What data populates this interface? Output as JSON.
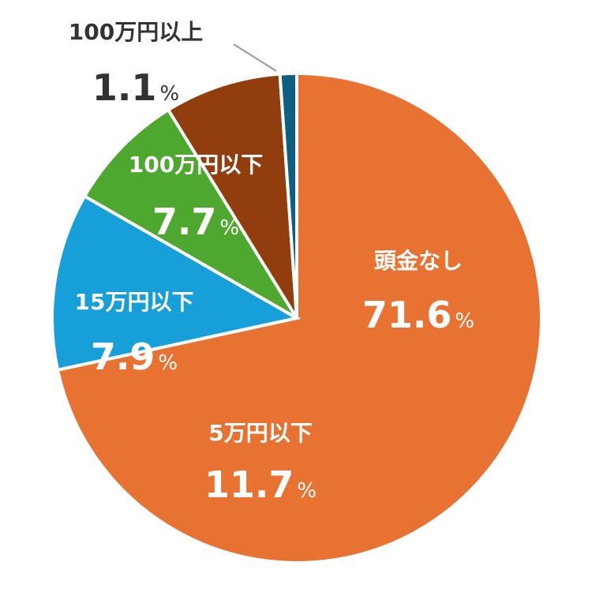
{
  "chart_data": {
    "type": "pie",
    "start_angle_deg": 0,
    "direction": "clockwise",
    "slices": [
      {
        "label": "頭金なし",
        "value": 71.6,
        "value_text": "71.6",
        "unit": "%",
        "color": "#E87232",
        "text_color": "#ffffff"
      },
      {
        "label": "5万円以下",
        "value": 11.7,
        "value_text": "11.7",
        "unit": "%",
        "color": "#169FD8",
        "text_color": "#ffffff"
      },
      {
        "label": "15万円以下",
        "value": 7.9,
        "value_text": "7.9",
        "unit": "%",
        "color": "#4EA72E",
        "text_color": "#ffffff"
      },
      {
        "label": "100万円以下",
        "value": 7.7,
        "value_text": "7.7",
        "unit": "%",
        "color": "#923D0E",
        "text_color": "#ffffff"
      },
      {
        "label": "100万円以上",
        "value": 1.1,
        "value_text": "1.1",
        "unit": "%",
        "color": "#0E5F80",
        "text_color": "#333333"
      }
    ]
  }
}
